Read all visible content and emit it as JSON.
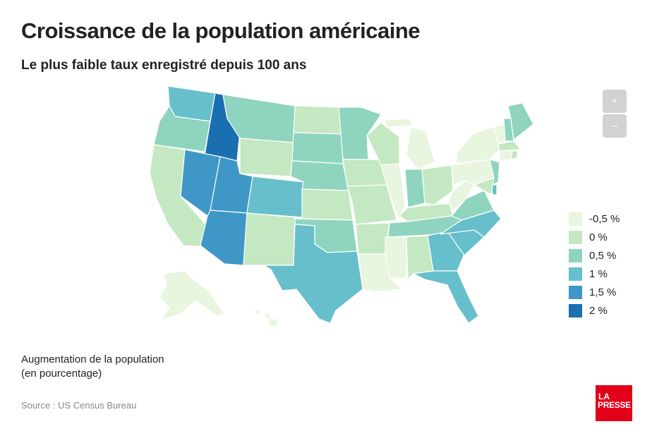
{
  "header": {
    "title": "Croissance de la population américaine",
    "subtitle": "Le plus faible taux enregistré depuis 100 ans"
  },
  "zoom": {
    "in_label": "+",
    "out_label": "–"
  },
  "legend": {
    "items": [
      {
        "label": "-0,5 %",
        "color": "#e8f5df"
      },
      {
        "label": "0 %",
        "color": "#c4e8c2"
      },
      {
        "label": "0,5 %",
        "color": "#8ed4bf"
      },
      {
        "label": "1 %",
        "color": "#67bfcb"
      },
      {
        "label": "1,5 %",
        "color": "#3f97c7"
      },
      {
        "label": "2 %",
        "color": "#1a6fb1"
      }
    ]
  },
  "caption": {
    "line1": "Augmentation de la population",
    "line2": "(en pourcentage)"
  },
  "source": "Source : US Census Bureau",
  "logo": {
    "line1": "LA",
    "line2": "PRESSE"
  },
  "states": {
    "WA": 1,
    "OR": 0.5,
    "CA": 0,
    "ID": 2,
    "NV": 1.5,
    "UT": 1.5,
    "AZ": 1.5,
    "MT": 0.5,
    "WY": 0,
    "CO": 1,
    "NM": 0,
    "TX": 1,
    "ND": 0,
    "SD": 0.5,
    "NE": 0.5,
    "KS": 0,
    "OK": 0.5,
    "MN": 0.5,
    "IA": 0,
    "MO": 0,
    "AR": 0,
    "LA": -0.5,
    "WI": 0,
    "IL": -0.5,
    "MI": -0.5,
    "IN": 0.5,
    "OH": 0,
    "KY": 0,
    "TN": 0.5,
    "MS": -0.5,
    "AL": 0,
    "GA": 1,
    "FL": 1,
    "SC": 1,
    "NC": 1,
    "VA": 0.5,
    "WV": -0.5,
    "PA": -0.5,
    "NY": -0.5,
    "VT": -0.5,
    "NH": 0.5,
    "ME": 0.5,
    "MA": 0,
    "CT": -0.5,
    "RI": 0,
    "NJ": 0.5,
    "DE": 1,
    "MD": 0,
    "AK": -0.5,
    "HI": -0.5
  }
}
